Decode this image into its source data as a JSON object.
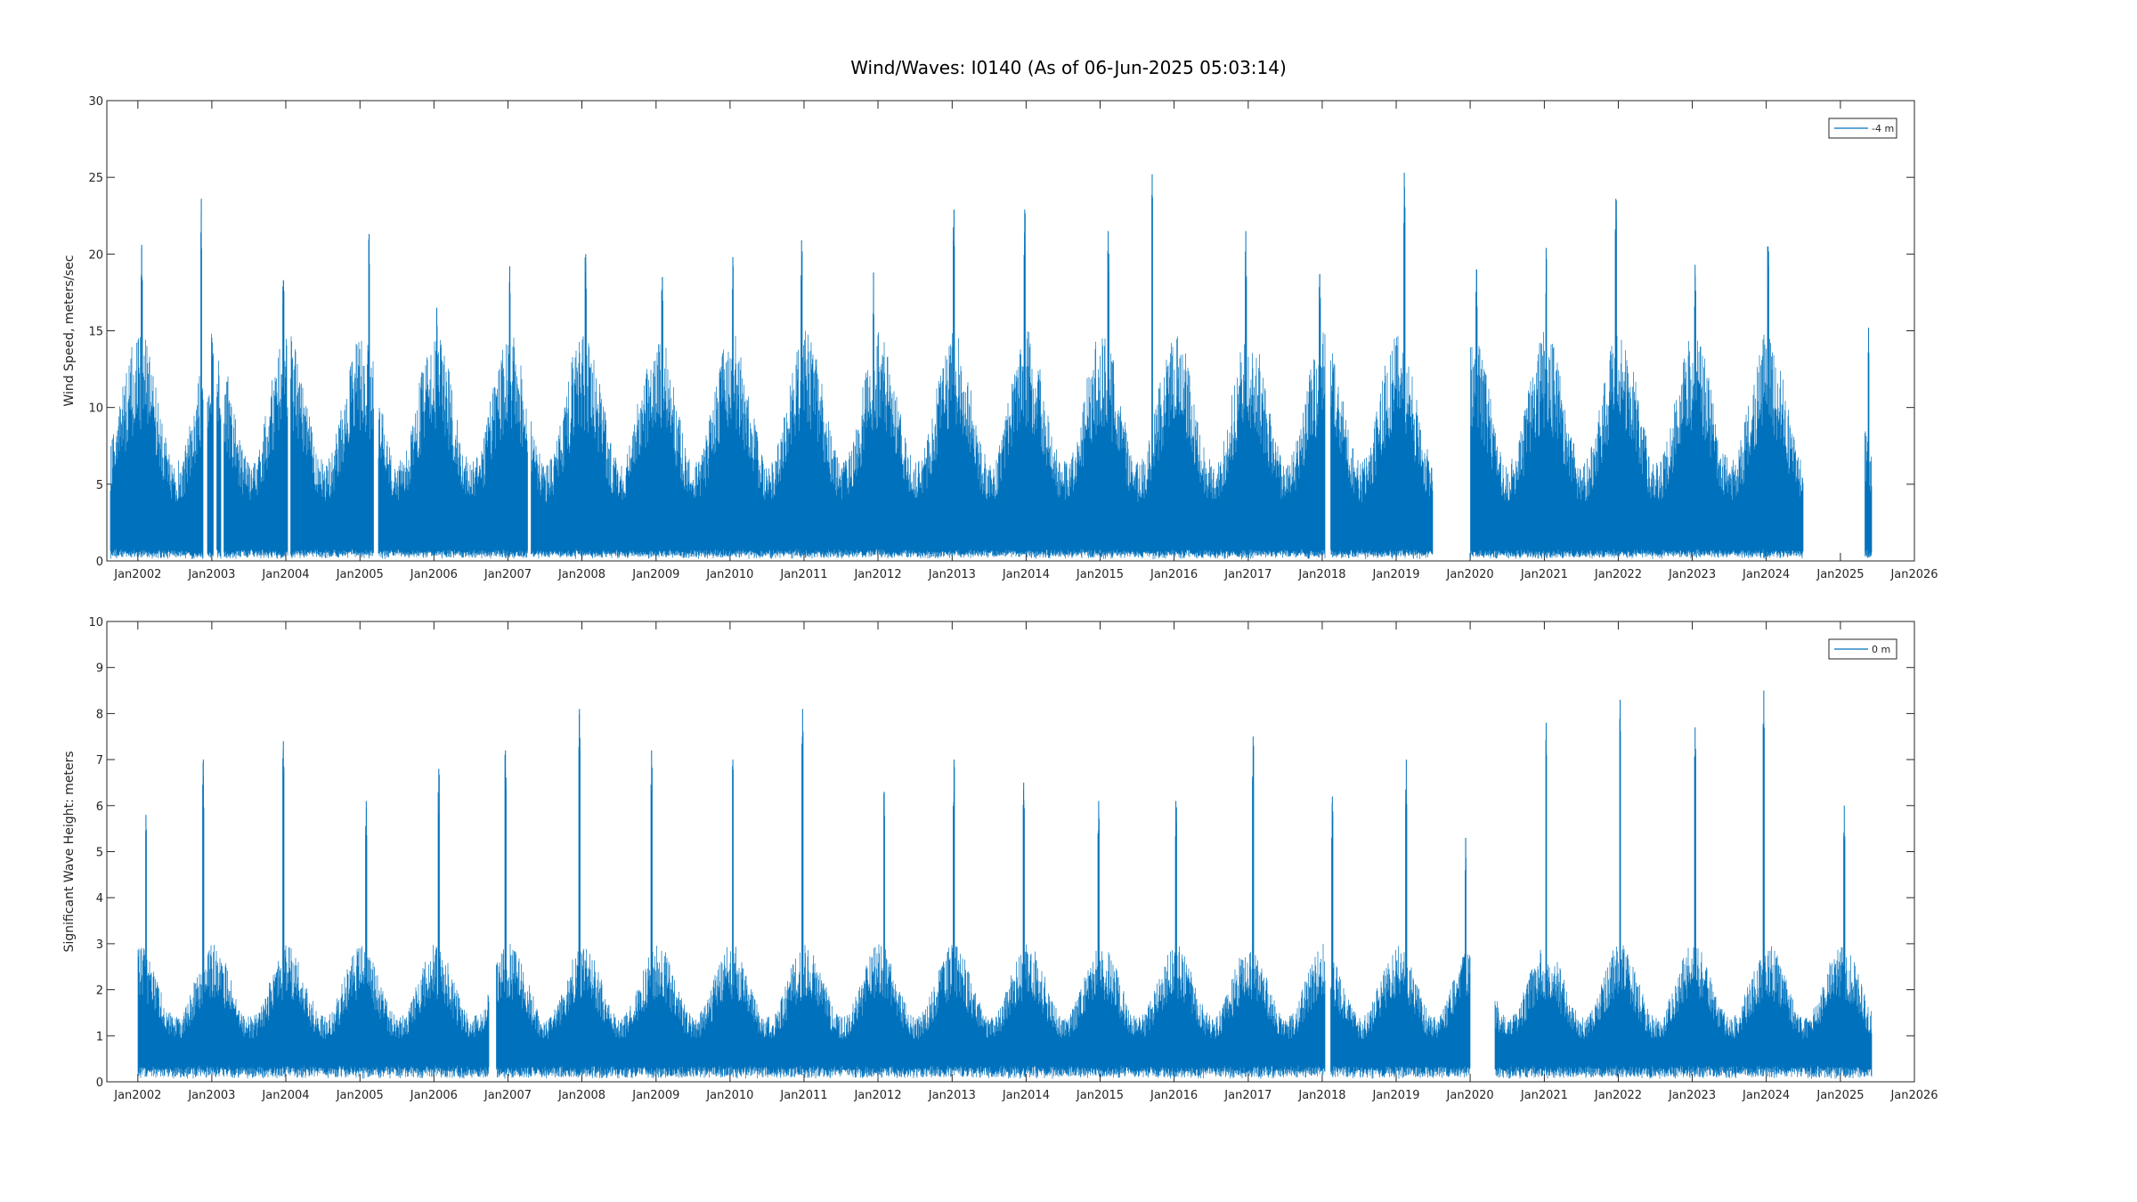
{
  "figure": {
    "title": "Wind/Waves: I0140 (As of 06-Jun-2025 05:03:14)"
  },
  "colors": {
    "series": "#0072BD",
    "axis": "#262626",
    "background": "#ffffff"
  },
  "chart_data": [
    {
      "type": "line",
      "title": "",
      "xlabel": "",
      "ylabel": "Wind Speed, meters/sec",
      "x_ticks": [
        "Jan2002",
        "Jan2003",
        "Jan2004",
        "Jan2005",
        "Jan2006",
        "Jan2007",
        "Jan2008",
        "Jan2009",
        "Jan2010",
        "Jan2011",
        "Jan2012",
        "Jan2013",
        "Jan2014",
        "Jan2015",
        "Jan2016",
        "Jan2017",
        "Jan2018",
        "Jan2019",
        "Jan2020",
        "Jan2021",
        "Jan2022",
        "Jan2023",
        "Jan2024",
        "Jan2025",
        "Jan2026"
      ],
      "xlim": [
        "2001-08-01",
        "2026-01-01"
      ],
      "ylim": [
        0,
        30
      ],
      "y_ticks": [
        0,
        5,
        10,
        15,
        20,
        25,
        30
      ],
      "grid": false,
      "legend_position": "top-right",
      "series": [
        {
          "name": "-4 m",
          "color": "#0072BD",
          "data_start": "2001-08-15",
          "data_end": "2025-06-06",
          "gaps": [
            [
              "2002-11-20",
              "2002-12-10"
            ],
            [
              "2003-01-10",
              "2003-01-25"
            ],
            [
              "2003-02-15",
              "2003-03-01"
            ],
            [
              "2004-01-10",
              "2004-01-25"
            ],
            [
              "2005-03-10",
              "2005-04-01"
            ],
            [
              "2007-04-10",
              "2007-04-25"
            ],
            [
              "2018-01-15",
              "2018-02-10"
            ],
            [
              "2019-07-01",
              "2020-01-01"
            ],
            [
              "2024-07-01",
              "2025-05-01"
            ]
          ],
          "typical_range": [
            0.5,
            15
          ],
          "peaks": [
            {
              "x": "2002-01-20",
              "y": 20.6
            },
            {
              "x": "2002-11-10",
              "y": 23.6
            },
            {
              "x": "2003-12-20",
              "y": 18.3
            },
            {
              "x": "2005-02-15",
              "y": 21.3
            },
            {
              "x": "2006-01-15",
              "y": 16.5
            },
            {
              "x": "2007-01-10",
              "y": 19.2
            },
            {
              "x": "2008-01-20",
              "y": 20.0
            },
            {
              "x": "2009-02-01",
              "y": 18.5
            },
            {
              "x": "2010-01-15",
              "y": 19.8
            },
            {
              "x": "2010-12-20",
              "y": 20.9
            },
            {
              "x": "2011-12-10",
              "y": 18.8
            },
            {
              "x": "2013-01-10",
              "y": 22.9
            },
            {
              "x": "2013-12-25",
              "y": 22.9
            },
            {
              "x": "2015-02-10",
              "y": 21.5
            },
            {
              "x": "2015-09-15",
              "y": 25.2
            },
            {
              "x": "2016-12-20",
              "y": 21.5
            },
            {
              "x": "2017-12-20",
              "y": 18.7
            },
            {
              "x": "2019-02-10",
              "y": 25.3
            },
            {
              "x": "2020-02-01",
              "y": 19.0
            },
            {
              "x": "2021-01-10",
              "y": 20.4
            },
            {
              "x": "2021-12-20",
              "y": 23.6
            },
            {
              "x": "2023-01-15",
              "y": 19.3
            },
            {
              "x": "2024-01-10",
              "y": 20.5
            },
            {
              "x": "2025-05-20",
              "y": 15.2
            }
          ]
        }
      ]
    },
    {
      "type": "line",
      "title": "",
      "xlabel": "",
      "ylabel": "Significant Wave Height:  meters",
      "x_ticks": [
        "Jan2002",
        "Jan2003",
        "Jan2004",
        "Jan2005",
        "Jan2006",
        "Jan2007",
        "Jan2008",
        "Jan2009",
        "Jan2010",
        "Jan2011",
        "Jan2012",
        "Jan2013",
        "Jan2014",
        "Jan2015",
        "Jan2016",
        "Jan2017",
        "Jan2018",
        "Jan2019",
        "Jan2020",
        "Jan2021",
        "Jan2022",
        "Jan2023",
        "Jan2024",
        "Jan2025",
        "Jan2026"
      ],
      "xlim": [
        "2001-08-01",
        "2026-01-01"
      ],
      "ylim": [
        0,
        10
      ],
      "y_ticks": [
        0,
        1,
        2,
        3,
        4,
        5,
        6,
        7,
        8,
        9,
        10
      ],
      "grid": false,
      "legend_position": "top-right",
      "series": [
        {
          "name": "0 m",
          "color": "#0072BD",
          "data_start": "2002-01-01",
          "data_end": "2025-06-06",
          "gaps": [
            [
              "2006-10-01",
              "2006-11-05"
            ],
            [
              "2018-01-15",
              "2018-02-10"
            ],
            [
              "2020-01-01",
              "2020-05-01"
            ]
          ],
          "typical_range": [
            0.3,
            3
          ],
          "peaks": [
            {
              "x": "2002-02-10",
              "y": 5.8
            },
            {
              "x": "2002-11-20",
              "y": 7.0
            },
            {
              "x": "2003-12-20",
              "y": 7.4
            },
            {
              "x": "2005-02-01",
              "y": 6.1
            },
            {
              "x": "2006-01-25",
              "y": 6.8
            },
            {
              "x": "2006-12-20",
              "y": 7.2
            },
            {
              "x": "2007-12-20",
              "y": 8.1
            },
            {
              "x": "2008-12-10",
              "y": 7.2
            },
            {
              "x": "2010-01-15",
              "y": 7.0
            },
            {
              "x": "2010-12-25",
              "y": 8.1
            },
            {
              "x": "2012-02-01",
              "y": 6.3
            },
            {
              "x": "2013-01-10",
              "y": 7.0
            },
            {
              "x": "2013-12-20",
              "y": 6.5
            },
            {
              "x": "2014-12-25",
              "y": 6.1
            },
            {
              "x": "2016-01-10",
              "y": 6.1
            },
            {
              "x": "2017-01-25",
              "y": 7.5
            },
            {
              "x": "2018-02-20",
              "y": 6.2
            },
            {
              "x": "2019-02-20",
              "y": 7.0
            },
            {
              "x": "2019-12-10",
              "y": 5.3
            },
            {
              "x": "2021-01-10",
              "y": 7.8
            },
            {
              "x": "2022-01-10",
              "y": 8.3
            },
            {
              "x": "2023-01-15",
              "y": 7.7
            },
            {
              "x": "2023-12-20",
              "y": 8.5
            },
            {
              "x": "2025-01-20",
              "y": 6.0
            }
          ]
        }
      ]
    }
  ]
}
